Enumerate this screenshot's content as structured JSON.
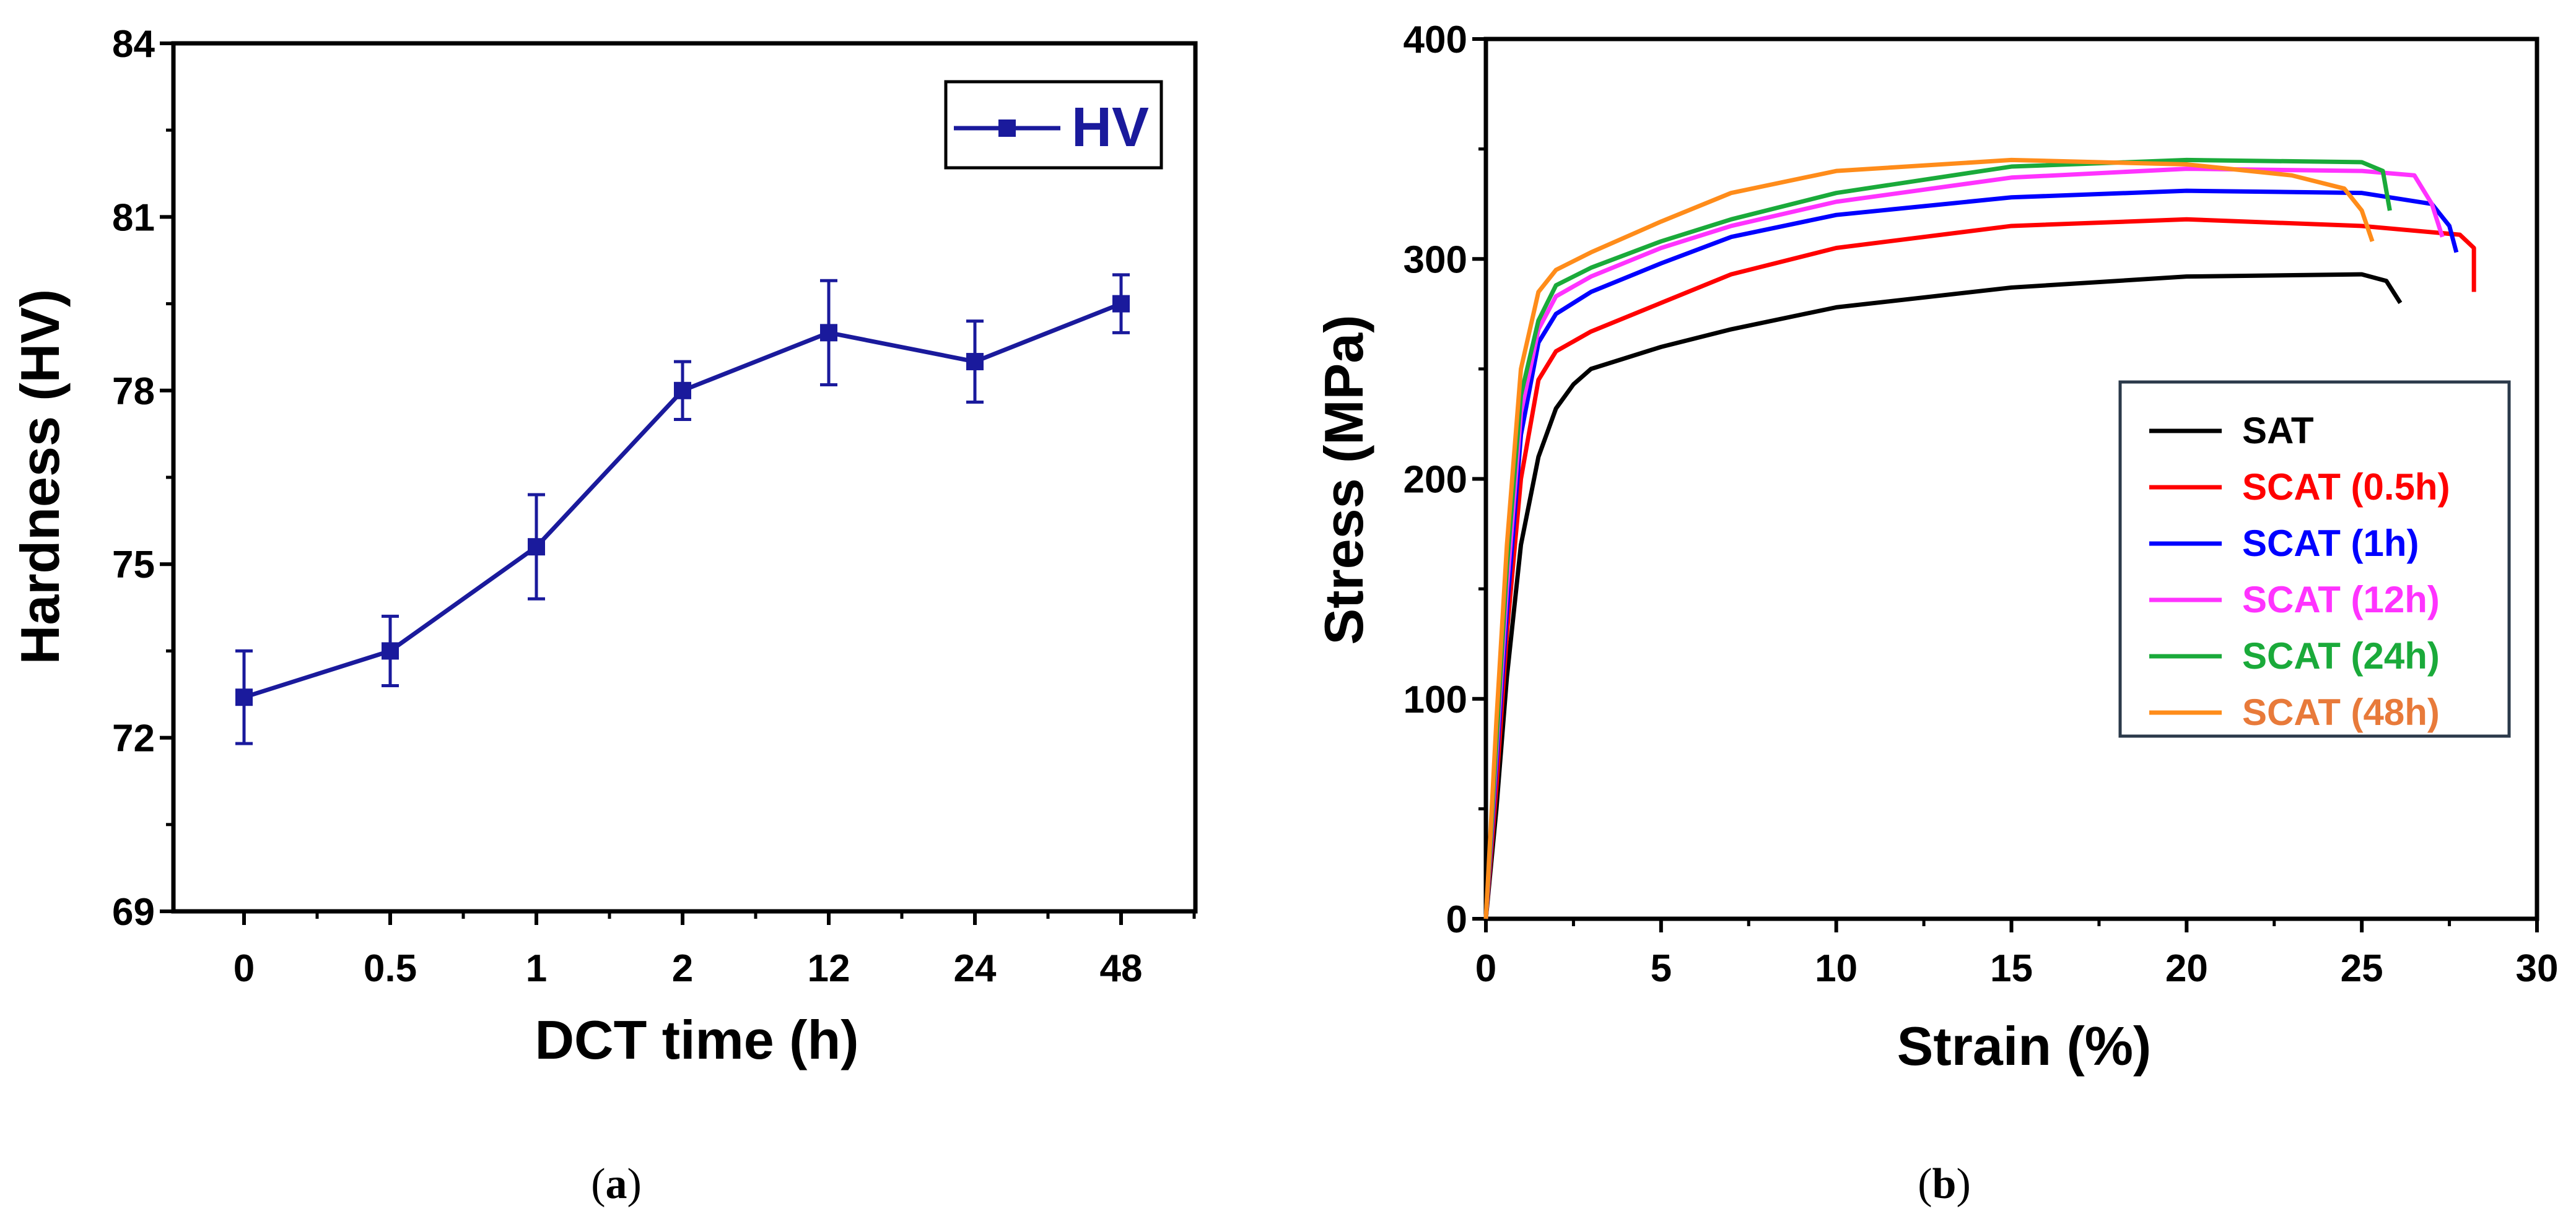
{
  "chart_data": [
    {
      "type": "line",
      "panel_label": "a",
      "xlabel": "DCT time (h)",
      "ylabel": "Hardness (HV)",
      "categories": [
        "0",
        "0.5",
        "1",
        "2",
        "12",
        "24",
        "48"
      ],
      "series": [
        {
          "name": "HV",
          "color": "#1a1a9c",
          "values": [
            72.7,
            73.5,
            75.3,
            78.0,
            79.0,
            78.5,
            79.5
          ],
          "errors": [
            0.8,
            0.6,
            0.9,
            0.5,
            0.9,
            0.7,
            0.5
          ]
        }
      ],
      "ylim": [
        69,
        84
      ],
      "yticks": [
        "69",
        "72",
        "75",
        "78",
        "81",
        "84"
      ],
      "legend": "top-right",
      "grid": false
    },
    {
      "type": "line",
      "panel_label": "b",
      "xlabel": "Strain (%)",
      "ylabel": "Stress (MPa)",
      "xlim": [
        0,
        30
      ],
      "ylim": [
        0,
        400
      ],
      "xticks": [
        "0",
        "5",
        "10",
        "15",
        "20",
        "25",
        "30"
      ],
      "yticks": [
        "0",
        "100",
        "200",
        "300",
        "400"
      ],
      "legend": "center-right",
      "grid": false,
      "series": [
        {
          "name": "SAT",
          "color": "#000000",
          "label_color": "#000000",
          "points": [
            [
              0,
              0
            ],
            [
              0.3,
              50
            ],
            [
              0.6,
              110
            ],
            [
              1,
              170
            ],
            [
              1.5,
              210
            ],
            [
              2,
              232
            ],
            [
              2.5,
              243
            ],
            [
              3,
              250
            ],
            [
              5,
              260
            ],
            [
              7,
              268
            ],
            [
              10,
              278
            ],
            [
              15,
              287
            ],
            [
              20,
              292
            ],
            [
              25,
              293
            ],
            [
              25.7,
              290
            ],
            [
              26.1,
              280
            ]
          ]
        },
        {
          "name": "SCAT (0.5h)",
          "color": "#ff0000",
          "label_color": "#ff0000",
          "points": [
            [
              0,
              0
            ],
            [
              0.3,
              60
            ],
            [
              0.6,
              130
            ],
            [
              1,
              200
            ],
            [
              1.5,
              245
            ],
            [
              2,
              258
            ],
            [
              3,
              267
            ],
            [
              5,
              280
            ],
            [
              7,
              293
            ],
            [
              10,
              305
            ],
            [
              15,
              315
            ],
            [
              20,
              318
            ],
            [
              25,
              315
            ],
            [
              27.8,
              311
            ],
            [
              28.2,
              305
            ],
            [
              28.2,
              285
            ]
          ]
        },
        {
          "name": "SCAT (1h)",
          "color": "#0000ff",
          "label_color": "#0000ff",
          "points": [
            [
              0,
              0
            ],
            [
              0.3,
              70
            ],
            [
              0.6,
              140
            ],
            [
              1,
              220
            ],
            [
              1.5,
              262
            ],
            [
              2,
              275
            ],
            [
              3,
              285
            ],
            [
              5,
              298
            ],
            [
              7,
              310
            ],
            [
              10,
              320
            ],
            [
              15,
              328
            ],
            [
              20,
              331
            ],
            [
              25,
              330
            ],
            [
              27,
              325
            ],
            [
              27.5,
              315
            ],
            [
              27.7,
              303
            ]
          ]
        },
        {
          "name": "SCAT (12h)",
          "color": "#ff33ff",
          "label_color": "#ff33ff",
          "points": [
            [
              0,
              0
            ],
            [
              0.3,
              75
            ],
            [
              0.6,
              150
            ],
            [
              1,
              230
            ],
            [
              1.5,
              268
            ],
            [
              2,
              283
            ],
            [
              3,
              292
            ],
            [
              5,
              305
            ],
            [
              7,
              315
            ],
            [
              10,
              326
            ],
            [
              15,
              337
            ],
            [
              20,
              341
            ],
            [
              25,
              340
            ],
            [
              26.5,
              338
            ],
            [
              27,
              325
            ],
            [
              27.3,
              310
            ]
          ]
        },
        {
          "name": "SCAT (24h)",
          "color": "#1aaa3a",
          "label_color": "#1aaa3a",
          "points": [
            [
              0,
              0
            ],
            [
              0.3,
              80
            ],
            [
              0.6,
              160
            ],
            [
              1,
              238
            ],
            [
              1.5,
              272
            ],
            [
              2,
              288
            ],
            [
              3,
              296
            ],
            [
              5,
              308
            ],
            [
              7,
              318
            ],
            [
              10,
              330
            ],
            [
              15,
              342
            ],
            [
              20,
              345
            ],
            [
              25,
              344
            ],
            [
              25.6,
              340
            ],
            [
              25.8,
              322
            ]
          ]
        },
        {
          "name": "SCAT (48h)",
          "color": "#ff8c1a",
          "label_color": "#e87a3a",
          "points": [
            [
              0,
              0
            ],
            [
              0.3,
              90
            ],
            [
              0.6,
              170
            ],
            [
              1,
              250
            ],
            [
              1.5,
              285
            ],
            [
              2,
              295
            ],
            [
              3,
              303
            ],
            [
              5,
              317
            ],
            [
              7,
              330
            ],
            [
              10,
              340
            ],
            [
              15,
              345
            ],
            [
              20,
              343
            ],
            [
              23,
              338
            ],
            [
              24.5,
              332
            ],
            [
              25,
              322
            ],
            [
              25.3,
              308
            ]
          ]
        }
      ]
    }
  ],
  "captions": {
    "a": "a",
    "b": "b"
  }
}
